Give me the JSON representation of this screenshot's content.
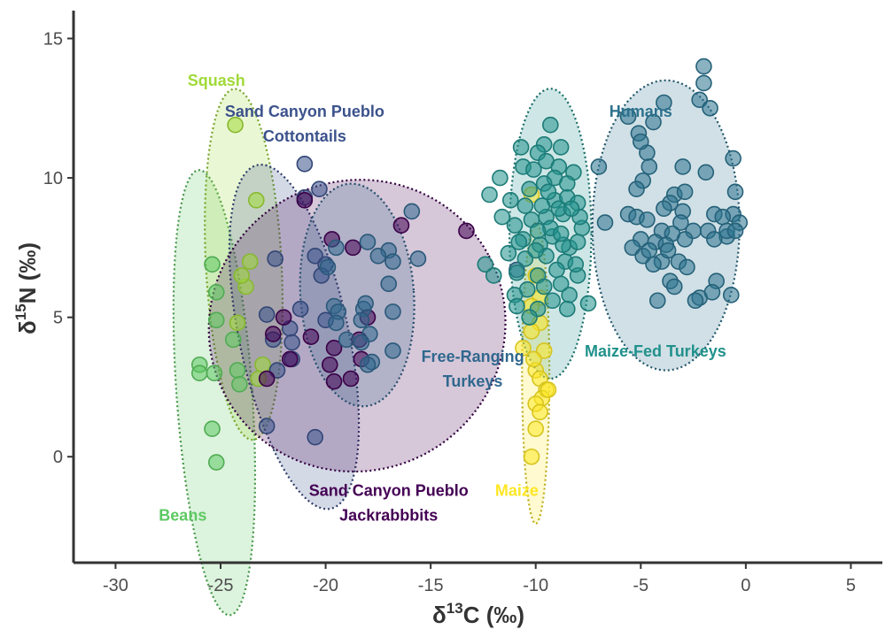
{
  "chart_data": {
    "type": "scatter",
    "xlabel": {
      "main": "δ",
      "sup": "13",
      "unit": "C (‰)"
    },
    "ylabel": {
      "main": "δ",
      "sup": "15",
      "unit": "N (‰)"
    },
    "xlim": [
      -32,
      6.5
    ],
    "ylim": [
      -3.8,
      16
    ],
    "xticks": [
      -30,
      -25,
      -20,
      -15,
      -10,
      -5,
      0,
      5
    ],
    "yticks": [
      0,
      5,
      10,
      15
    ],
    "grid": false,
    "legend": "none",
    "series": [
      {
        "name": "Beans",
        "color": "#5ec962",
        "label_lines": [
          "Beans"
        ],
        "label_at": [
          -26.8,
          -2.3
        ],
        "ellipse": {
          "cx": -25.3,
          "cy": 2.3,
          "rx": 1.8,
          "ry": 8.0,
          "angle": -4
        },
        "points": [
          [
            -25.4,
            6.9
          ],
          [
            -25.2,
            5.9
          ],
          [
            -25.2,
            4.9
          ],
          [
            -26.0,
            3.3
          ],
          [
            -26.0,
            3.0
          ],
          [
            -25.3,
            3.0
          ],
          [
            -24.4,
            4.2
          ],
          [
            -24.2,
            3.1
          ],
          [
            -24.1,
            2.6
          ],
          [
            -25.4,
            1.0
          ],
          [
            -25.2,
            -0.2
          ]
        ]
      },
      {
        "name": "Squash",
        "color": "#a0da39",
        "label_lines": [
          "Squash"
        ],
        "label_at": [
          -25.2,
          13.3
        ],
        "ellipse": {
          "cx": -23.9,
          "cy": 6.9,
          "rx": 1.8,
          "ry": 6.3,
          "angle": -3
        },
        "points": [
          [
            -24.3,
            11.9
          ],
          [
            -23.3,
            9.2
          ],
          [
            -23.6,
            7.0
          ],
          [
            -23.8,
            6.1
          ],
          [
            -24.2,
            4.8
          ],
          [
            -23.0,
            3.3
          ],
          [
            -23.2,
            2.8
          ],
          [
            -24.0,
            6.5
          ]
        ]
      },
      {
        "name": "Sand Canyon Pueblo Cottontails",
        "color": "#3b528b",
        "label_lines": [
          "Sand Canyon Pueblo",
          "Cottontails"
        ],
        "label_at": [
          -21.0,
          12.2
        ],
        "ellipse": {
          "cx": -21.5,
          "cy": 4.3,
          "rx": 2.6,
          "ry": 6.3,
          "angle": -12
        },
        "points": [
          [
            -21.0,
            10.5
          ],
          [
            -20.3,
            9.6
          ],
          [
            -21.0,
            9.3
          ],
          [
            -22.4,
            7.1
          ],
          [
            -20.5,
            7.2
          ],
          [
            -20.0,
            6.9
          ],
          [
            -20.2,
            6.5
          ],
          [
            -21.2,
            5.3
          ],
          [
            -21.7,
            4.6
          ],
          [
            -22.5,
            4.2
          ],
          [
            -20.0,
            4.9
          ],
          [
            -21.6,
            3.5
          ],
          [
            -22.3,
            3.1
          ],
          [
            -22.8,
            1.1
          ],
          [
            -20.5,
            0.7
          ],
          [
            -22.8,
            5.1
          ],
          [
            -21.6,
            4.1
          ]
        ]
      },
      {
        "name": "Sand Canyon Pueblo Jackrabbbits",
        "color": "#440154",
        "label_lines": [
          "Sand Canyon Pueblo",
          "Jackrabbbits"
        ],
        "label_at": [
          -17.0,
          -1.4
        ],
        "ellipse": {
          "cx": -18.5,
          "cy": 4.7,
          "rx": 7.1,
          "ry": 5.2,
          "angle": -28
        },
        "points": [
          [
            -21.0,
            9.2
          ],
          [
            -19.7,
            7.8
          ],
          [
            -18.7,
            7.5
          ],
          [
            -16.4,
            8.3
          ],
          [
            -13.3,
            8.1
          ],
          [
            -22.0,
            5.0
          ],
          [
            -21.7,
            3.5
          ],
          [
            -19.6,
            3.9
          ],
          [
            -19.8,
            3.3
          ],
          [
            -18.4,
            4.2
          ],
          [
            -18.3,
            3.5
          ],
          [
            -19.6,
            2.7
          ],
          [
            -18.8,
            2.8
          ],
          [
            -22.8,
            2.8
          ],
          [
            -20.7,
            4.3
          ],
          [
            -22.5,
            4.4
          ],
          [
            -18.0,
            5.0
          ]
        ]
      },
      {
        "name": "Free-Ranging Turkeys",
        "color": "#31688e",
        "label_lines": [
          "Free-Ranging",
          "Turkeys"
        ],
        "label_at": [
          -13.0,
          3.4
        ],
        "ellipse": {
          "cx": -18.5,
          "cy": 5.8,
          "rx": 2.7,
          "ry": 4.0,
          "angle": -4
        },
        "points": [
          [
            -15.9,
            8.8
          ],
          [
            -17.0,
            7.4
          ],
          [
            -16.8,
            7.0
          ],
          [
            -18.0,
            7.7
          ],
          [
            -19.5,
            7.5
          ],
          [
            -17.5,
            7.2
          ],
          [
            -15.6,
            7.1
          ],
          [
            -19.9,
            6.8
          ],
          [
            -17.0,
            6.2
          ],
          [
            -19.6,
            5.4
          ],
          [
            -19.4,
            5.2
          ],
          [
            -18.2,
            5.3
          ],
          [
            -18.1,
            5.5
          ],
          [
            -18.3,
            4.9
          ],
          [
            -16.8,
            5.2
          ],
          [
            -19.5,
            4.8
          ],
          [
            -17.9,
            4.4
          ],
          [
            -18.3,
            4.1
          ],
          [
            -16.8,
            3.8
          ],
          [
            -17.8,
            3.4
          ],
          [
            -18.0,
            3.3
          ],
          [
            -19.0,
            4.2
          ],
          [
            -10.9,
            6.7
          ]
        ]
      },
      {
        "name": "Maize",
        "color": "#fde725",
        "label_lines": [
          "Maize"
        ],
        "label_at": [
          -10.9,
          -1.4
        ],
        "ellipse": {
          "cx": -10.0,
          "cy": 3.0,
          "rx": 0.65,
          "ry": 5.4,
          "angle": 0
        },
        "points": [
          [
            -10.2,
            9.4
          ],
          [
            -10.0,
            6.5
          ],
          [
            -9.8,
            5.7
          ],
          [
            -10.2,
            5.4
          ],
          [
            -9.8,
            4.8
          ],
          [
            -10.2,
            4.5
          ],
          [
            -10.6,
            3.9
          ],
          [
            -9.6,
            3.8
          ],
          [
            -10.0,
            3.1
          ],
          [
            -9.8,
            2.8
          ],
          [
            -9.5,
            2.4
          ],
          [
            -9.7,
            2.1
          ],
          [
            -10.0,
            1.9
          ],
          [
            -9.8,
            1.6
          ],
          [
            -10.0,
            1.0
          ],
          [
            -10.2,
            0.0
          ],
          [
            -9.4,
            2.4
          ],
          [
            -10.1,
            3.5
          ]
        ]
      },
      {
        "name": "Maize-Fed Turkeys",
        "color": "#21918c",
        "label_lines": [
          "Maize-Fed Turkeys"
        ],
        "label_at": [
          -4.3,
          3.6
        ],
        "ellipse": {
          "cx": -9.3,
          "cy": 8.0,
          "rx": 1.95,
          "ry": 5.2,
          "angle": 0
        },
        "points": [
          [
            -9.3,
            11.9
          ],
          [
            -10.7,
            11.1
          ],
          [
            -9.6,
            11.2
          ],
          [
            -8.8,
            11.1
          ],
          [
            -9.9,
            10.9
          ],
          [
            -10.6,
            10.4
          ],
          [
            -10.1,
            10.3
          ],
          [
            -9.5,
            10.6
          ],
          [
            -8.9,
            10.4
          ],
          [
            -8.2,
            10.2
          ],
          [
            -9.1,
            10.0
          ],
          [
            -9.6,
            9.8
          ],
          [
            -10.3,
            9.6
          ],
          [
            -8.5,
            9.8
          ],
          [
            -11.7,
            10.0
          ],
          [
            -11.2,
            9.2
          ],
          [
            -10.5,
            9.0
          ],
          [
            -9.1,
            9.2
          ],
          [
            -8.5,
            9.3
          ],
          [
            -8.0,
            9.1
          ],
          [
            -12.2,
            9.4
          ],
          [
            -11.6,
            8.6
          ],
          [
            -10.2,
            8.5
          ],
          [
            -9.5,
            8.6
          ],
          [
            -8.7,
            8.7
          ],
          [
            -11.0,
            8.3
          ],
          [
            -7.8,
            8.2
          ],
          [
            -10.6,
            7.8
          ],
          [
            -9.8,
            7.6
          ],
          [
            -9.2,
            7.9
          ],
          [
            -8.4,
            7.5
          ],
          [
            -8.0,
            7.7
          ],
          [
            -11.3,
            7.3
          ],
          [
            -10.5,
            7.1
          ],
          [
            -9.5,
            7.2
          ],
          [
            -8.6,
            7.0
          ],
          [
            -10.9,
            6.6
          ],
          [
            -9.9,
            6.5
          ],
          [
            -9.0,
            6.7
          ],
          [
            -8.0,
            6.5
          ],
          [
            -12.4,
            6.9
          ],
          [
            -12.0,
            6.5
          ],
          [
            -10.4,
            6.0
          ],
          [
            -9.6,
            6.1
          ],
          [
            -8.8,
            6.2
          ],
          [
            -11.0,
            5.8
          ],
          [
            -8.4,
            5.8
          ],
          [
            -9.9,
            5.3
          ],
          [
            -8.5,
            5.3
          ],
          [
            -7.5,
            5.5
          ],
          [
            -10.3,
            5.0
          ],
          [
            -10.9,
            5.4
          ],
          [
            -9.2,
            5.6
          ],
          [
            -8.1,
            6.9
          ],
          [
            -7.9,
            8.6
          ],
          [
            -9.7,
            9.0
          ],
          [
            -8.9,
            8.9
          ],
          [
            -10.0,
            7.4
          ],
          [
            -9.3,
            8.2
          ],
          [
            -8.7,
            7.6
          ],
          [
            -8.3,
            8.9
          ],
          [
            -9.4,
            9.5
          ],
          [
            -10.8,
            7.7
          ],
          [
            -9.9,
            8.1
          ],
          [
            -8.8,
            8.0
          ]
        ]
      },
      {
        "name": "Humans",
        "color": "#2c728e",
        "label_lines": [
          "Humans"
        ],
        "label_at": [
          -5.0,
          12.2
        ],
        "ellipse": {
          "cx": -3.8,
          "cy": 8.3,
          "rx": 3.5,
          "ry": 5.2,
          "angle": 0
        },
        "points": [
          [
            -2.0,
            14.0
          ],
          [
            -2.0,
            13.4
          ],
          [
            -2.2,
            12.8
          ],
          [
            -3.9,
            12.7
          ],
          [
            -1.7,
            12.5
          ],
          [
            -5.6,
            12.2
          ],
          [
            -4.4,
            12.0
          ],
          [
            -5.1,
            11.6
          ],
          [
            -4.7,
            10.9
          ],
          [
            -5.0,
            11.3
          ],
          [
            -4.6,
            10.4
          ],
          [
            -1.9,
            10.2
          ],
          [
            -0.6,
            10.7
          ],
          [
            -4.9,
            9.9
          ],
          [
            -3.0,
            10.4
          ],
          [
            -5.2,
            9.6
          ],
          [
            -7.0,
            10.4
          ],
          [
            -0.5,
            9.5
          ],
          [
            -3.4,
            9.4
          ],
          [
            -2.9,
            9.5
          ],
          [
            -3.6,
            9.1
          ],
          [
            -3.9,
            8.9
          ],
          [
            -3.0,
            8.8
          ],
          [
            -5.6,
            8.7
          ],
          [
            -5.2,
            8.6
          ],
          [
            -4.7,
            8.5
          ],
          [
            -6.7,
            8.4
          ],
          [
            -3.1,
            8.4
          ],
          [
            -0.6,
            8.7
          ],
          [
            -1.5,
            8.7
          ],
          [
            -1.1,
            8.6
          ],
          [
            -0.3,
            8.4
          ],
          [
            -4.0,
            8.1
          ],
          [
            -3.5,
            8.0
          ],
          [
            -2.5,
            8.1
          ],
          [
            -1.8,
            8.1
          ],
          [
            -0.9,
            7.9
          ],
          [
            -5.0,
            7.8
          ],
          [
            -4.3,
            7.7
          ],
          [
            -3.8,
            7.6
          ],
          [
            -2.9,
            7.8
          ],
          [
            -1.5,
            7.8
          ],
          [
            -0.9,
            8.1
          ],
          [
            -0.5,
            8.1
          ],
          [
            -5.4,
            7.5
          ],
          [
            -4.9,
            7.2
          ],
          [
            -3.2,
            7.0
          ],
          [
            -4.0,
            7.0
          ],
          [
            -4.4,
            6.9
          ],
          [
            -2.8,
            6.8
          ],
          [
            -3.6,
            6.3
          ],
          [
            -1.4,
            6.3
          ],
          [
            -3.4,
            6.1
          ],
          [
            -4.2,
            5.6
          ],
          [
            -2.2,
            5.7
          ],
          [
            -1.6,
            5.9
          ],
          [
            -0.7,
            5.8
          ],
          [
            -2.4,
            5.6
          ],
          [
            -4.6,
            7.4
          ],
          [
            -3.7,
            7.4
          ]
        ]
      }
    ]
  }
}
